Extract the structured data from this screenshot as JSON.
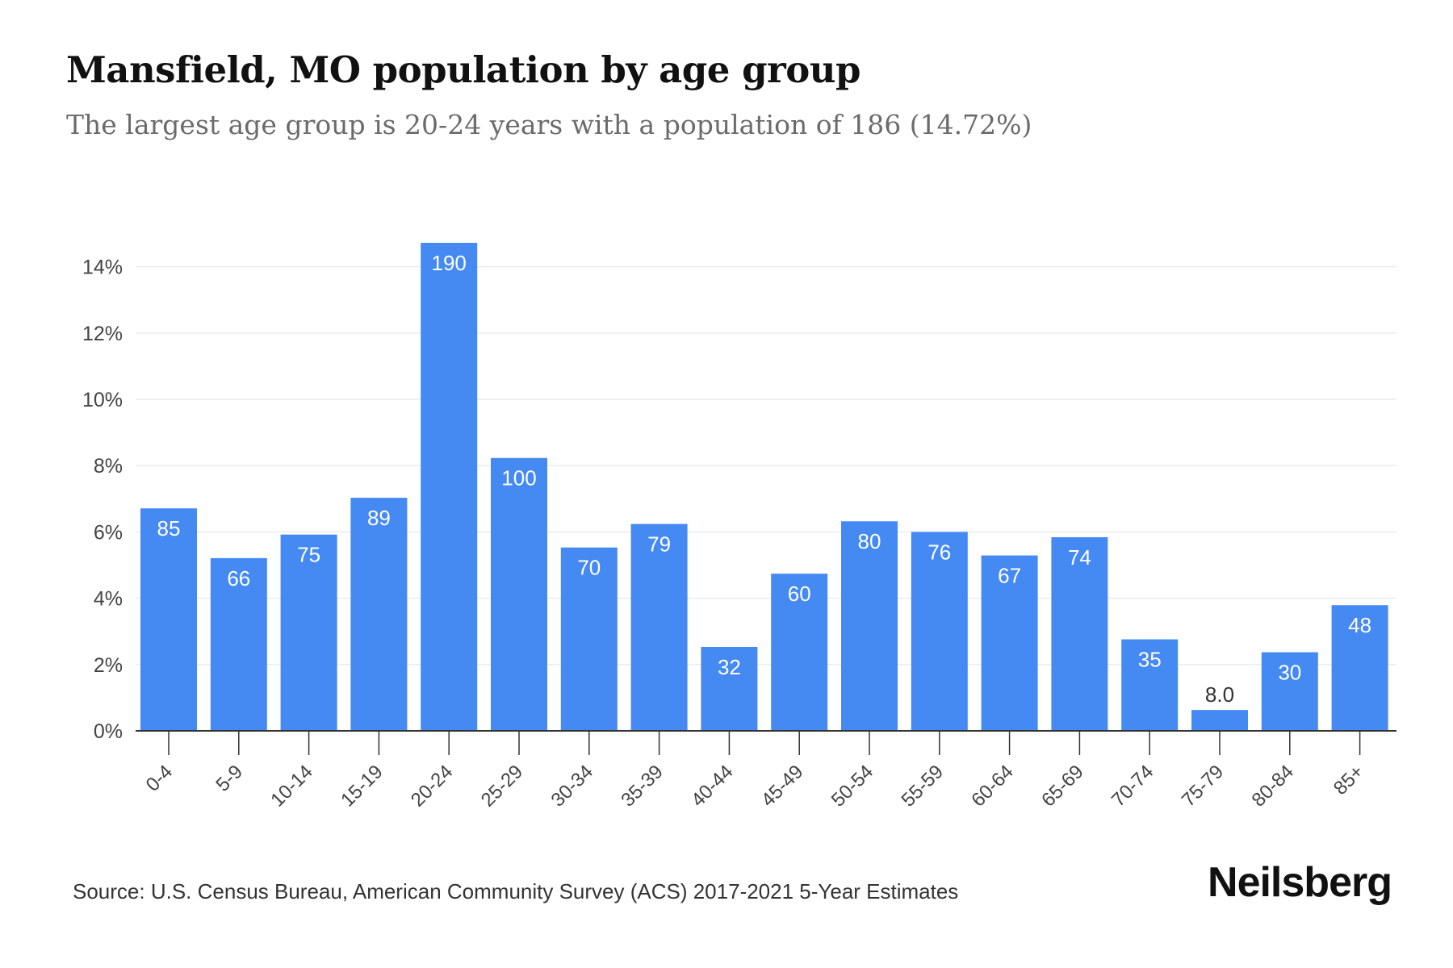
{
  "header": {
    "title": "Mansfield, MO population by age group",
    "subtitle": "The largest age group is 20-24 years with a population of 186 (14.72%)"
  },
  "footer": {
    "source": "Source: U.S. Census Bureau, American Community Survey (ACS) 2017-2021 5-Year Estimates",
    "brand": "Neilsberg"
  },
  "colors": {
    "bar": "#4589f3",
    "grid": "#ebebeb",
    "axis": "#333333",
    "label_inside": "#ffffff",
    "label_outside": "#333333"
  },
  "chart_data": {
    "type": "bar",
    "categories": [
      "0-4",
      "5-9",
      "10-14",
      "15-19",
      "20-24",
      "25-29",
      "30-34",
      "35-39",
      "40-44",
      "45-49",
      "50-54",
      "55-59",
      "60-64",
      "65-69",
      "70-74",
      "75-79",
      "80-84",
      "85+"
    ],
    "values": [
      6.71,
      5.21,
      5.92,
      7.03,
      14.72,
      8.23,
      5.53,
      6.24,
      2.53,
      4.74,
      6.32,
      6.0,
      5.29,
      5.84,
      2.76,
      0.63,
      2.37,
      3.79
    ],
    "data_labels": [
      "85",
      "66",
      "75",
      "89",
      "190",
      "100",
      "70",
      "79",
      "32",
      "60",
      "80",
      "76",
      "67",
      "74",
      "35",
      "8.0",
      "30",
      "48"
    ],
    "y_ticks": [
      "0%",
      "2%",
      "4%",
      "6%",
      "8%",
      "10%",
      "12%",
      "14%"
    ],
    "y_tick_values": [
      0,
      2,
      4,
      6,
      8,
      10,
      12,
      14
    ],
    "ylim": [
      0,
      14.72
    ],
    "xlabel": "",
    "ylabel": "",
    "grid": true
  }
}
